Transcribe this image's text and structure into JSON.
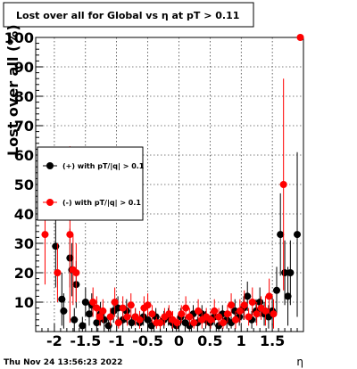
{
  "header": {
    "title": "Lost over all for Global vs   η at pT > 0.11"
  },
  "footer": {
    "timestamp": "Thu Nov 24 13:56:23 2022"
  },
  "chart_data": {
    "type": "scatter",
    "title": "Lost over all for Global vs   η at pT > 0.11",
    "xlabel": "η",
    "ylabel": "Lost over all (%)",
    "xlim": [
      -2.3,
      2.0
    ],
    "ylim": [
      0,
      100
    ],
    "x_ticks": [
      "-2",
      "-1.5",
      "-1",
      "-0.5",
      "0",
      "0.5",
      "1",
      "1.5"
    ],
    "x_tick_values": [
      -2,
      -1.5,
      -1,
      -0.5,
      0,
      0.5,
      1,
      1.5
    ],
    "y_ticks": [
      "10",
      "20",
      "30",
      "40",
      "50",
      "60",
      "70",
      "80",
      "90",
      "100"
    ],
    "y_tick_values": [
      10,
      20,
      30,
      40,
      50,
      60,
      70,
      80,
      90,
      100
    ],
    "grid": true,
    "legend_position": "left",
    "series": [
      {
        "name": "(+) with pT/|q| > 0.1",
        "color": "#000000",
        "points": [
          {
            "x": -1.98,
            "y": 29,
            "err": 14
          },
          {
            "x": -1.88,
            "y": 11,
            "err": 9
          },
          {
            "x": -1.85,
            "y": 7,
            "err": 6
          },
          {
            "x": -1.75,
            "y": 25,
            "err": 10
          },
          {
            "x": -1.72,
            "y": 21,
            "err": 9
          },
          {
            "x": -1.68,
            "y": 4,
            "err": 4
          },
          {
            "x": -1.65,
            "y": 16,
            "err": 8
          },
          {
            "x": -1.55,
            "y": 2,
            "err": 3
          },
          {
            "x": -1.5,
            "y": 10,
            "err": 5
          },
          {
            "x": -1.44,
            "y": 6,
            "err": 4
          },
          {
            "x": -1.4,
            "y": 9,
            "err": 4
          },
          {
            "x": -1.32,
            "y": 3,
            "err": 3
          },
          {
            "x": -1.26,
            "y": 6,
            "err": 4
          },
          {
            "x": -1.2,
            "y": 4,
            "err": 3
          },
          {
            "x": -1.13,
            "y": 2,
            "err": 2
          },
          {
            "x": -1.05,
            "y": 7,
            "err": 4
          },
          {
            "x": -0.98,
            "y": 8,
            "err": 4
          },
          {
            "x": -0.9,
            "y": 4,
            "err": 3
          },
          {
            "x": -0.84,
            "y": 7,
            "err": 4
          },
          {
            "x": -0.76,
            "y": 3,
            "err": 2
          },
          {
            "x": -0.7,
            "y": 5,
            "err": 3
          },
          {
            "x": -0.63,
            "y": 3,
            "err": 2
          },
          {
            "x": -0.57,
            "y": 5,
            "err": 3
          },
          {
            "x": -0.5,
            "y": 4,
            "err": 3
          },
          {
            "x": -0.44,
            "y": 2,
            "err": 2
          },
          {
            "x": -0.37,
            "y": 5,
            "err": 3
          },
          {
            "x": -0.3,
            "y": 3,
            "err": 2
          },
          {
            "x": -0.24,
            "y": 4,
            "err": 3
          },
          {
            "x": -0.17,
            "y": 5,
            "err": 3
          },
          {
            "x": -0.11,
            "y": 3,
            "err": 2
          },
          {
            "x": -0.04,
            "y": 2,
            "err": 2
          },
          {
            "x": 0.03,
            "y": 5,
            "err": 3
          },
          {
            "x": 0.1,
            "y": 3,
            "err": 2
          },
          {
            "x": 0.17,
            "y": 2,
            "err": 2
          },
          {
            "x": 0.23,
            "y": 6,
            "err": 3
          },
          {
            "x": 0.3,
            "y": 3,
            "err": 2
          },
          {
            "x": 0.37,
            "y": 6,
            "err": 3
          },
          {
            "x": 0.43,
            "y": 4,
            "err": 3
          },
          {
            "x": 0.5,
            "y": 3,
            "err": 2
          },
          {
            "x": 0.57,
            "y": 5,
            "err": 3
          },
          {
            "x": 0.64,
            "y": 2,
            "err": 2
          },
          {
            "x": 0.7,
            "y": 6,
            "err": 3
          },
          {
            "x": 0.77,
            "y": 4,
            "err": 3
          },
          {
            "x": 0.84,
            "y": 3,
            "err": 2
          },
          {
            "x": 0.9,
            "y": 7,
            "err": 4
          },
          {
            "x": 0.97,
            "y": 5,
            "err": 3
          },
          {
            "x": 1.04,
            "y": 8,
            "err": 4
          },
          {
            "x": 1.1,
            "y": 12,
            "err": 5
          },
          {
            "x": 1.17,
            "y": 4,
            "err": 3
          },
          {
            "x": 1.24,
            "y": 7,
            "err": 4
          },
          {
            "x": 1.3,
            "y": 10,
            "err": 5
          },
          {
            "x": 1.37,
            "y": 6,
            "err": 4
          },
          {
            "x": 1.44,
            "y": 5,
            "err": 4
          },
          {
            "x": 1.5,
            "y": 7,
            "err": 5
          },
          {
            "x": 1.57,
            "y": 14,
            "err": 8
          },
          {
            "x": 1.63,
            "y": 33,
            "err": 14
          },
          {
            "x": 1.7,
            "y": 20,
            "err": 11
          },
          {
            "x": 1.75,
            "y": 12,
            "err": 10
          },
          {
            "x": 1.79,
            "y": 20,
            "err": 11
          },
          {
            "x": 1.9,
            "y": 33,
            "err": 28
          }
        ]
      },
      {
        "name": "(-) with pT/|q| > 0.1",
        "color": "#ff0000",
        "points": [
          {
            "x": -2.15,
            "y": 33,
            "err": 17
          },
          {
            "x": -1.95,
            "y": 20,
            "err": 10
          },
          {
            "x": -1.75,
            "y": 33,
            "err": 30
          },
          {
            "x": -1.7,
            "y": 21,
            "err": 12
          },
          {
            "x": -1.65,
            "y": 20,
            "err": 10
          },
          {
            "x": -1.38,
            "y": 10,
            "err": 5
          },
          {
            "x": -1.32,
            "y": 8,
            "err": 4
          },
          {
            "x": -1.27,
            "y": 5,
            "err": 3
          },
          {
            "x": -1.22,
            "y": 7,
            "err": 4
          },
          {
            "x": -1.1,
            "y": 5,
            "err": 3
          },
          {
            "x": -1.03,
            "y": 10,
            "err": 5
          },
          {
            "x": -0.97,
            "y": 3,
            "err": 2
          },
          {
            "x": -0.9,
            "y": 8,
            "err": 4
          },
          {
            "x": -0.83,
            "y": 5,
            "err": 3
          },
          {
            "x": -0.77,
            "y": 9,
            "err": 4
          },
          {
            "x": -0.7,
            "y": 5,
            "err": 3
          },
          {
            "x": -0.63,
            "y": 4,
            "err": 3
          },
          {
            "x": -0.56,
            "y": 8,
            "err": 4
          },
          {
            "x": -0.5,
            "y": 9,
            "err": 4
          },
          {
            "x": -0.43,
            "y": 6,
            "err": 3
          },
          {
            "x": -0.36,
            "y": 3,
            "err": 2
          },
          {
            "x": -0.3,
            "y": 3,
            "err": 2
          },
          {
            "x": -0.23,
            "y": 5,
            "err": 3
          },
          {
            "x": -0.16,
            "y": 6,
            "err": 3
          },
          {
            "x": -0.1,
            "y": 4,
            "err": 3
          },
          {
            "x": -0.03,
            "y": 3,
            "err": 2
          },
          {
            "x": 0.04,
            "y": 6,
            "err": 3
          },
          {
            "x": 0.11,
            "y": 8,
            "err": 4
          },
          {
            "x": 0.17,
            "y": 5,
            "err": 3
          },
          {
            "x": 0.24,
            "y": 3,
            "err": 2
          },
          {
            "x": 0.31,
            "y": 7,
            "err": 4
          },
          {
            "x": 0.37,
            "y": 4,
            "err": 3
          },
          {
            "x": 0.44,
            "y": 5,
            "err": 3
          },
          {
            "x": 0.51,
            "y": 4,
            "err": 3
          },
          {
            "x": 0.57,
            "y": 7,
            "err": 4
          },
          {
            "x": 0.64,
            "y": 5,
            "err": 3
          },
          {
            "x": 0.71,
            "y": 3,
            "err": 2
          },
          {
            "x": 0.78,
            "y": 6,
            "err": 3
          },
          {
            "x": 0.84,
            "y": 9,
            "err": 4
          },
          {
            "x": 0.91,
            "y": 4,
            "err": 3
          },
          {
            "x": 0.98,
            "y": 7,
            "err": 4
          },
          {
            "x": 1.05,
            "y": 9,
            "err": 5
          },
          {
            "x": 1.12,
            "y": 5,
            "err": 3
          },
          {
            "x": 1.18,
            "y": 10,
            "err": 5
          },
          {
            "x": 1.25,
            "y": 6,
            "err": 4
          },
          {
            "x": 1.32,
            "y": 8,
            "err": 4
          },
          {
            "x": 1.39,
            "y": 7,
            "err": 5
          },
          {
            "x": 1.45,
            "y": 12,
            "err": 6
          },
          {
            "x": 1.52,
            "y": 6,
            "err": 5
          },
          {
            "x": 1.68,
            "y": 50,
            "err": 36
          },
          {
            "x": 1.95,
            "y": 100,
            "err": 0
          }
        ]
      }
    ]
  }
}
